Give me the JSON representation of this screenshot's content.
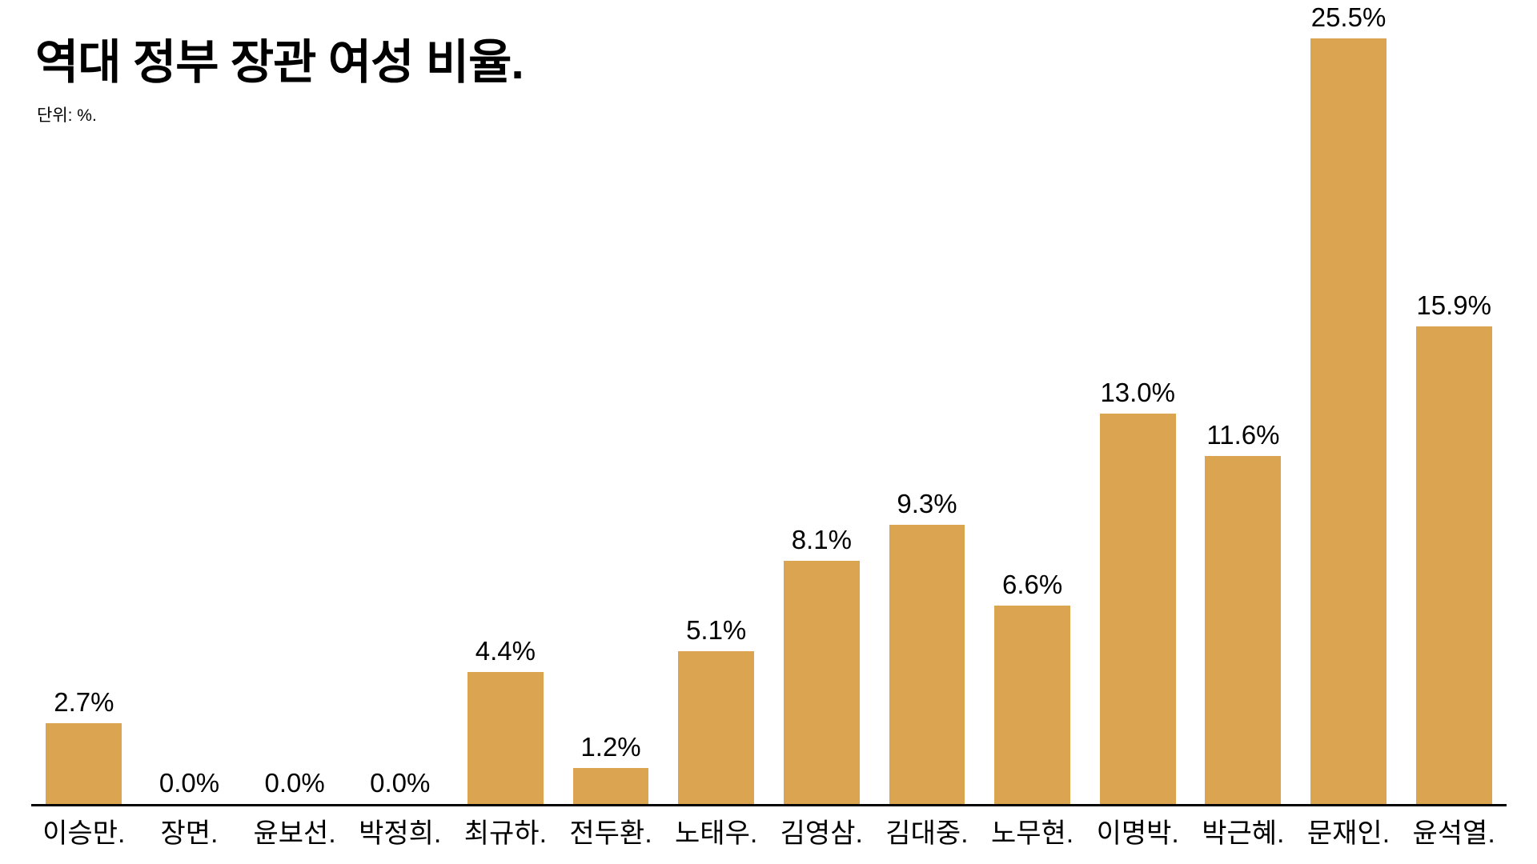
{
  "header": {
    "title": "역대 정부 장관 여성 비율.",
    "subtitle": "단위: %."
  },
  "chart_data": {
    "type": "bar",
    "title": "역대 정부 장관 여성 비율.",
    "unit_note": "단위: %.",
    "categories": [
      "이승만.",
      "장면.",
      "윤보선.",
      "박정희.",
      "최규하.",
      "전두환.",
      "노태우.",
      "김영삼.",
      "김대중.",
      "노무현.",
      "이명박.",
      "박근혜.",
      "문재인.",
      "윤석열."
    ],
    "values": [
      2.7,
      0.0,
      0.0,
      0.0,
      4.4,
      1.2,
      5.1,
      8.1,
      9.3,
      6.6,
      13.0,
      11.6,
      25.5,
      15.9
    ],
    "value_labels": [
      "2.7%",
      "0.0%",
      "0.0%",
      "0.0%",
      "4.4%",
      "1.2%",
      "5.1%",
      "8.1%",
      "9.3%",
      "6.6%",
      "13.0%",
      "11.6%",
      "25.5%",
      "15.9%"
    ],
    "ylim": [
      0,
      25.5
    ],
    "bar_color": "#DBA451",
    "axis_color": "#000000",
    "grid": false,
    "legend": false,
    "xlabel": "",
    "ylabel": ""
  }
}
